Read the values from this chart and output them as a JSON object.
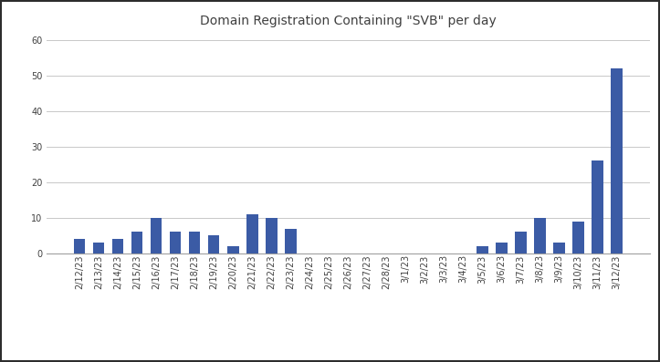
{
  "title": "Domain Registration Containing \"SVB\" per day",
  "categories": [
    "2/12/23",
    "2/13/23",
    "2/14/23",
    "2/15/23",
    "2/16/23",
    "2/17/23",
    "2/18/23",
    "2/19/23",
    "2/20/23",
    "2/21/23",
    "2/22/23",
    "2/23/23",
    "2/24/23",
    "2/25/23",
    "2/26/23",
    "2/27/23",
    "2/28/23",
    "3/1/23",
    "3/2/23",
    "3/3/23",
    "3/4/23",
    "3/5/23",
    "3/6/23",
    "3/7/23",
    "3/8/23",
    "3/9/23",
    "3/10/23",
    "3/11/23",
    "3/12/23"
  ],
  "values": [
    4,
    3,
    4,
    6,
    10,
    6,
    6,
    5,
    2,
    11,
    10,
    7,
    0,
    0,
    0,
    0,
    0,
    0,
    0,
    0,
    0,
    2,
    3,
    6,
    10,
    3,
    9,
    26,
    52
  ],
  "bar_color": "#3B5BA5",
  "ylim": [
    0,
    62
  ],
  "yticks": [
    0,
    10,
    20,
    30,
    40,
    50,
    60
  ],
  "background_color": "#FFFFFF",
  "grid_color": "#C8C8C8",
  "title_fontsize": 10,
  "tick_fontsize": 7,
  "figsize": [
    7.23,
    3.97
  ],
  "dpi": 100,
  "outer_border_color": "#2D2D2D",
  "spine_color": "#A0A0A0",
  "title_color": "#404040"
}
